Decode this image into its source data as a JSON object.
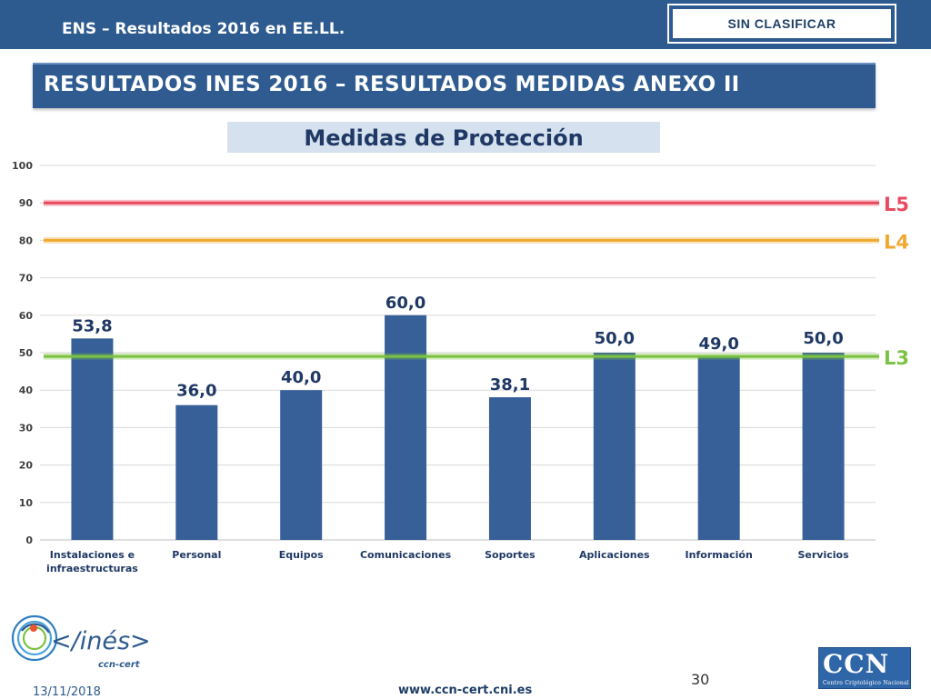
{
  "header": {
    "title": "ENS – Resultados 2016 en EE.LL.",
    "classification": "SIN CLASIFICAR"
  },
  "main_header": {
    "title": "RESULTADOS INES 2016 – RESULTADOS MEDIDAS ANEXO II"
  },
  "colors": {
    "bar": "#376099",
    "header_bg": "#2e5b8f",
    "l5": "#e84a5f",
    "l4": "#f0a830",
    "l3": "#7cc242"
  },
  "chart_data": {
    "type": "bar",
    "title": "Medidas de Protección",
    "categories": [
      "Instalaciones e infraestructuras",
      "Personal",
      "Equipos",
      "Comunicaciones",
      "Soportes",
      "Aplicaciones",
      "Información",
      "Servicios"
    ],
    "values": [
      53.8,
      36.0,
      40.0,
      60.0,
      38.1,
      50.0,
      49.0,
      50.0
    ],
    "value_labels": [
      "53,8",
      "36,0",
      "40,0",
      "60,0",
      "38,1",
      "50,0",
      "49,0",
      "50,0"
    ],
    "ylim": [
      0,
      100
    ],
    "yticks": [
      0,
      10,
      20,
      30,
      40,
      50,
      60,
      70,
      80,
      90,
      100
    ],
    "grid": true,
    "reference_lines": [
      {
        "label": "L5",
        "value": 90,
        "color": "#e84a5f"
      },
      {
        "label": "L4",
        "value": 80,
        "color": "#f0a830"
      },
      {
        "label": "L3",
        "value": 49,
        "color": "#7cc242"
      }
    ]
  },
  "footer": {
    "date": "13/11/2018",
    "url": "www.ccn-cert.cni.es",
    "page": "30",
    "logo_text": "</inés>",
    "logo_sub": "ccn-cert",
    "ccn_letters": "CCN",
    "ccn_sub": "Centro Criptológico Nacional"
  }
}
